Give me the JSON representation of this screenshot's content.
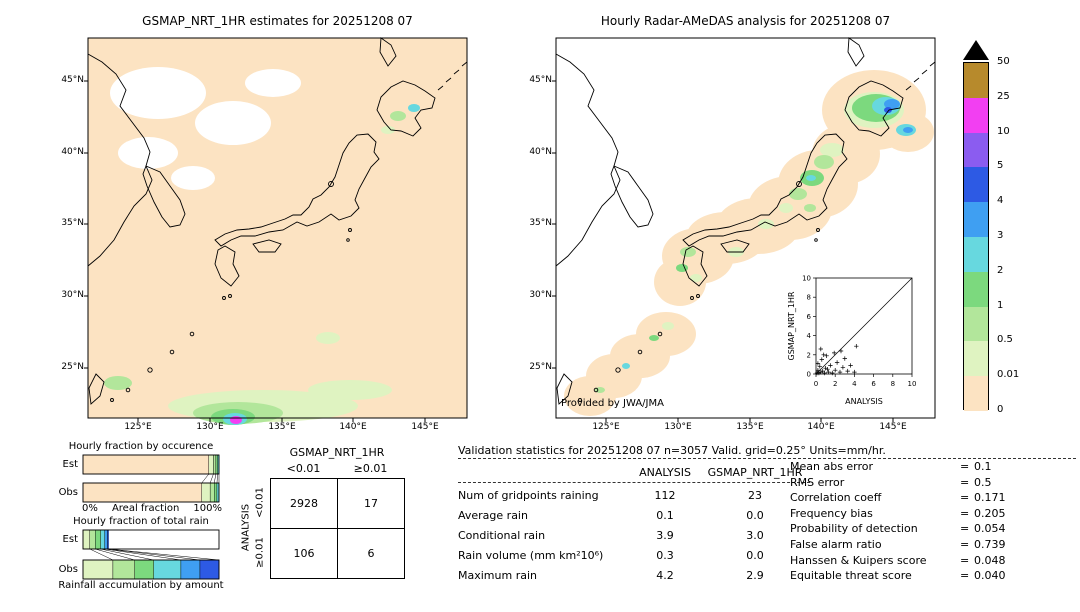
{
  "colorbar": {
    "units": "mm/hr",
    "overflow_color": "#000000",
    "labels_top_to_bottom": [
      "50",
      "25",
      "10",
      "5",
      "4",
      "3",
      "2",
      "1",
      "0.5",
      "0.01",
      "0"
    ],
    "segments_top_to_bottom": [
      {
        "range": "25-50",
        "color": "#b78a2c"
      },
      {
        "range": "10-25",
        "color": "#f23ff2"
      },
      {
        "range": "5-10",
        "color": "#8b5cf0"
      },
      {
        "range": "4-5",
        "color": "#2d5ae4"
      },
      {
        "range": "3-4",
        "color": "#3f9ff2"
      },
      {
        "range": "2-3",
        "color": "#67d8df"
      },
      {
        "range": "1-2",
        "color": "#7cd97e"
      },
      {
        "range": "0.5-1",
        "color": "#b2e69b"
      },
      {
        "range": "0.01-0.5",
        "color": "#dff3c1"
      },
      {
        "range": "0-0.01",
        "color": "#fce3c2"
      }
    ]
  },
  "chart_data": [
    {
      "type": "heatmap",
      "title": "GSMAP_NRT_1HR estimates for 20251208 07",
      "units": "mm/hr",
      "lat_ticks": [
        "45°N",
        "40°N",
        "35°N",
        "30°N",
        "25°N"
      ],
      "lon_ticks": [
        "125°E",
        "130°E",
        "135°E",
        "140°E",
        "145°E"
      ],
      "notes": "Satellite rain estimates: field mostly 0 (peach); white no-data patches over the continent; light rain specks near Hokkaido; rain band near 22-26N with small intense cell (~10-25 mm/hr) near 131E"
    },
    {
      "type": "heatmap",
      "title": "Hourly Radar-AMeDAS analysis for 20251208 07",
      "units": "mm/hr",
      "credit": "Provided by JWA/JMA",
      "lat_ticks": [
        "45°N",
        "40°N",
        "35°N",
        "30°N",
        "25°N"
      ],
      "lon_ticks": [
        "125°E",
        "130°E",
        "135°E",
        "140°E",
        "145°E"
      ],
      "notes": "Radar coverage (peach) along Japanese archipelago; rain up to 4-5 mm/hr over Hokkaido, lighter rain along western Honshu coast, Kyushu, Shikoku and Ryukyu islands"
    },
    {
      "type": "scatter",
      "xlabel": "ANALYSIS",
      "ylabel": "GSMAP_NRT_1HR",
      "xlim": [
        0,
        10
      ],
      "ylim": [
        0,
        10
      ],
      "ticks": [
        0,
        2,
        4,
        6,
        8,
        10
      ],
      "diagonal": true,
      "marker": "+",
      "points": [
        [
          0.1,
          0.1
        ],
        [
          0.2,
          0.4
        ],
        [
          0.3,
          0.1
        ],
        [
          0.4,
          0.8
        ],
        [
          0.5,
          0.2
        ],
        [
          0.6,
          1.5
        ],
        [
          0.7,
          0.3
        ],
        [
          0.9,
          0.1
        ],
        [
          1.0,
          0.6
        ],
        [
          1.1,
          1.9
        ],
        [
          1.3,
          0.2
        ],
        [
          1.5,
          0.9
        ],
        [
          1.7,
          0.1
        ],
        [
          1.9,
          2.2
        ],
        [
          2.0,
          0.4
        ],
        [
          2.2,
          1.2
        ],
        [
          2.5,
          0.2
        ],
        [
          2.8,
          0.7
        ],
        [
          3.0,
          1.6
        ],
        [
          3.3,
          0.3
        ],
        [
          3.6,
          0.9
        ],
        [
          4.0,
          0.2
        ],
        [
          4.2,
          2.9
        ],
        [
          0.2,
          1.1
        ],
        [
          0.5,
          2.6
        ],
        [
          0.8,
          2.0
        ],
        [
          1.2,
          0.5
        ],
        [
          2.6,
          2.4
        ]
      ]
    },
    {
      "type": "bar",
      "title": "Hourly fraction by occurence",
      "rows": [
        "Est",
        "Obs"
      ],
      "xlabel": "Areal fraction",
      "x_min_label": "0%",
      "x_max_label": "100%",
      "est_segments": [
        {
          "class": "0-0.01",
          "color": "#fce3c2",
          "frac": 0.925
        },
        {
          "class": "0.01-0.5",
          "color": "#dff3c1",
          "frac": 0.034
        },
        {
          "class": "0.5-1",
          "color": "#b2e69b",
          "frac": 0.018
        },
        {
          "class": "1-2",
          "color": "#7cd97e",
          "frac": 0.013
        },
        {
          "class": "2-3",
          "color": "#67d8df",
          "frac": 0.01
        }
      ],
      "obs_segments": [
        {
          "class": "0-0.01",
          "color": "#fce3c2",
          "frac": 0.873
        },
        {
          "class": "0.01-0.5",
          "color": "#dff3c1",
          "frac": 0.062
        },
        {
          "class": "0.5-1",
          "color": "#b2e69b",
          "frac": 0.03
        },
        {
          "class": "1-2",
          "color": "#7cd97e",
          "frac": 0.02
        },
        {
          "class": "2-3",
          "color": "#67d8df",
          "frac": 0.015
        }
      ]
    },
    {
      "type": "bar",
      "title": "Hourly fraction of total rain",
      "rows": [
        "Est",
        "Obs"
      ],
      "caption": "Rainfall accumulation by amount",
      "est_segments": [
        {
          "class": "0.01-0.5",
          "color": "#dff3c1",
          "frac": 0.05
        },
        {
          "class": "0.5-1",
          "color": "#b2e69b",
          "frac": 0.04
        },
        {
          "class": "1-2",
          "color": "#7cd97e",
          "frac": 0.04
        },
        {
          "class": "2-3",
          "color": "#67d8df",
          "frac": 0.03
        },
        {
          "class": "3-4",
          "color": "#3f9ff2",
          "frac": 0.02
        },
        {
          "class": "4-5",
          "color": "#2d5ae4",
          "frac": 0.01
        },
        {
          "class": "none",
          "color": "#ffffff",
          "frac": 0.81
        }
      ],
      "obs_segments": [
        {
          "class": "0.01-0.5",
          "color": "#dff3c1",
          "frac": 0.22
        },
        {
          "class": "0.5-1",
          "color": "#b2e69b",
          "frac": 0.16
        },
        {
          "class": "1-2",
          "color": "#7cd97e",
          "frac": 0.14
        },
        {
          "class": "2-3",
          "color": "#67d8df",
          "frac": 0.2
        },
        {
          "class": "3-4",
          "color": "#3f9ff2",
          "frac": 0.14
        },
        {
          "class": "4-5",
          "color": "#2d5ae4",
          "frac": 0.14
        }
      ]
    },
    {
      "type": "table",
      "col_axis": "GSMAP_NRT_1HR",
      "row_axis": "ANALYSIS",
      "col_labels": [
        "<0.01",
        "≥0.01"
      ],
      "row_labels": [
        "<0.01",
        "≥0.01"
      ],
      "cells": [
        [
          "2928",
          "17"
        ],
        [
          "106",
          "6"
        ]
      ]
    },
    {
      "type": "table",
      "title": "Validation statistics for 20251208 07 n=3057 Valid. grid=0.25° Units=mm/hr.",
      "eq": "=",
      "columns": [
        "ANALYSIS",
        "GSMAP_NRT_1HR"
      ],
      "rows": [
        {
          "label": "Num of gridpoints raining",
          "values": [
            "112",
            "23"
          ]
        },
        {
          "label": "Average rain",
          "values": [
            "0.1",
            "0.0"
          ]
        },
        {
          "label": "Conditional rain",
          "values": [
            "3.9",
            "3.0"
          ]
        },
        {
          "label": "Rain volume (mm km²10⁶)",
          "values": [
            "0.3",
            "0.0"
          ]
        },
        {
          "label": "Maximum rain",
          "values": [
            "4.2",
            "2.9"
          ]
        }
      ],
      "scores": [
        {
          "label": "Mean abs error",
          "value": "0.1"
        },
        {
          "label": "RMS error",
          "value": "0.5"
        },
        {
          "label": "Correlation coeff",
          "value": "0.171"
        },
        {
          "label": "Frequency bias",
          "value": "0.205"
        },
        {
          "label": "Probability of detection",
          "value": "0.054"
        },
        {
          "label": "False alarm ratio",
          "value": "0.739"
        },
        {
          "label": "Hanssen & Kuipers score",
          "value": "0.048"
        },
        {
          "label": "Equitable threat score",
          "value": "0.040"
        }
      ]
    }
  ]
}
